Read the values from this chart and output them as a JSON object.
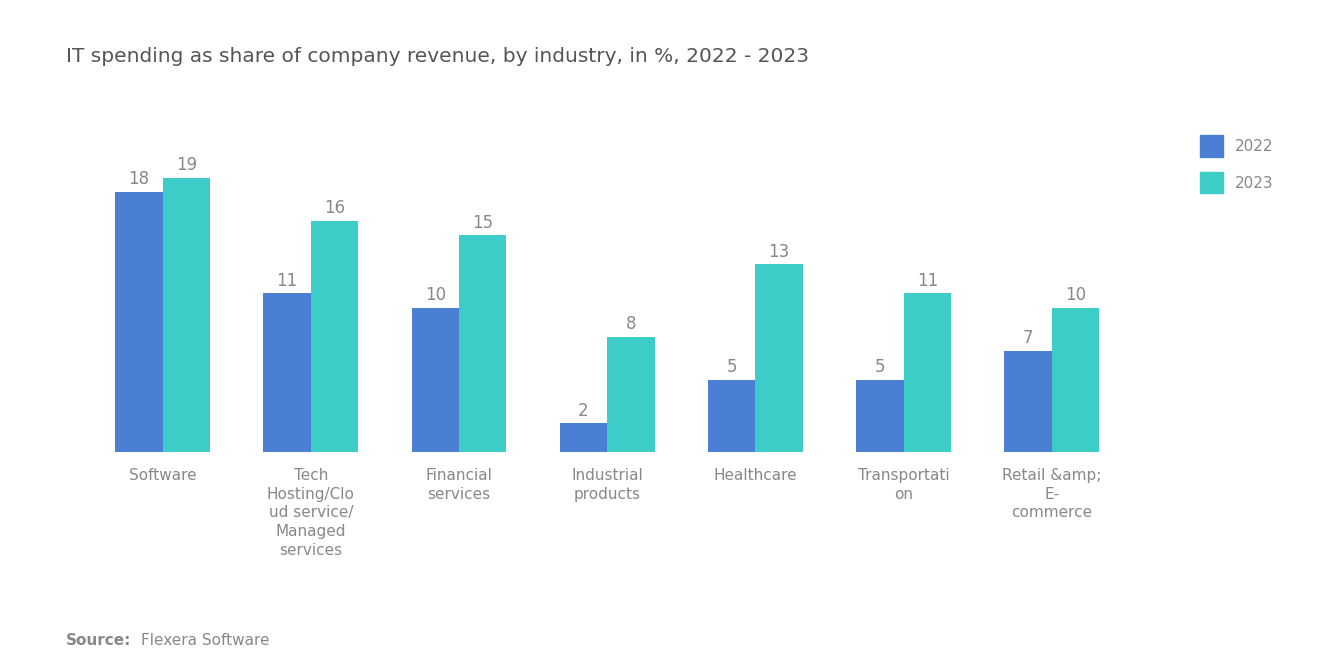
{
  "title": "IT spending as share of company revenue, by industry, in %, 2022 - 2023",
  "categories": [
    "Software",
    "Tech\nHosting/Clo\nud service/\nManaged\nservices",
    "Financial\nservices",
    "Industrial\nproducts",
    "Healthcare",
    "Transportati\non",
    "Retail &amp;\nE-\ncommerce"
  ],
  "values_2022": [
    18,
    11,
    10,
    2,
    5,
    5,
    7
  ],
  "values_2023": [
    19,
    16,
    15,
    8,
    13,
    11,
    10
  ],
  "color_2022": "#4a7fd4",
  "color_2023": "#3dcdc8",
  "legend_labels": [
    "2022",
    "2023"
  ],
  "bar_width": 0.32,
  "ylim": [
    0,
    23
  ],
  "source_bold": "Source:",
  "source_text": "Flexera Software",
  "background_color": "#ffffff",
  "text_color": "#888888",
  "title_color": "#555555",
  "label_fontsize": 11,
  "value_fontsize": 12,
  "title_fontsize": 14.5,
  "source_fontsize": 11
}
